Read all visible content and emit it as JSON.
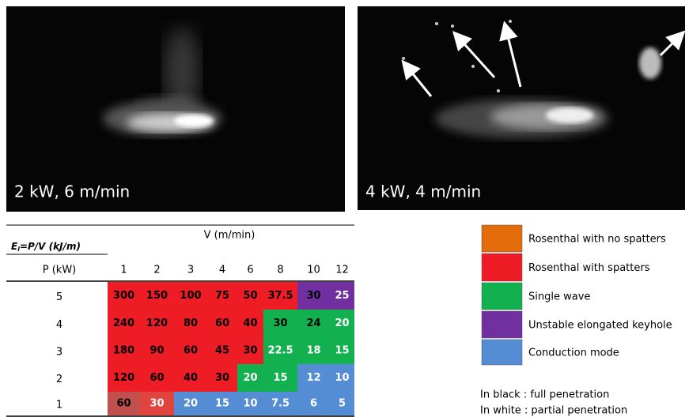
{
  "photos": [
    {
      "caption": "2 kW, 6 m/min"
    },
    {
      "caption": "4 kW, 4 m/min"
    }
  ],
  "table": {
    "corner": {
      "main": "E",
      "sub": "l",
      "rest": "=P/V (kJ/m)"
    },
    "column_title": "V (m/min)",
    "row_title": "P (kW)",
    "speeds": [
      "1",
      "2",
      "3",
      "4",
      "6",
      "8",
      "10",
      "12"
    ],
    "rows": [
      {
        "power": "5",
        "cells": [
          {
            "text": "300",
            "color": "#ee1c25",
            "ink": "#000000"
          },
          {
            "text": "150",
            "color": "#ee1c25",
            "ink": "#000000"
          },
          {
            "text": "100",
            "color": "#ee1c25",
            "ink": "#000000"
          },
          {
            "text": "75",
            "color": "#ee1c25",
            "ink": "#000000"
          },
          {
            "text": "50",
            "color": "#ee1c25",
            "ink": "#000000"
          },
          {
            "text": "37.5",
            "color": "#ee1c25",
            "ink": "#000000"
          },
          {
            "text": "30",
            "color": "#7030a0",
            "ink": "#000000"
          },
          {
            "text": "25",
            "color": "#7030a0",
            "ink": "#ffffff"
          }
        ]
      },
      {
        "power": "4",
        "cells": [
          {
            "text": "240",
            "color": "#ee1c25",
            "ink": "#000000"
          },
          {
            "text": "120",
            "color": "#ee1c25",
            "ink": "#000000"
          },
          {
            "text": "80",
            "color": "#ee1c25",
            "ink": "#000000"
          },
          {
            "text": "60",
            "color": "#ee1c25",
            "ink": "#000000"
          },
          {
            "text": "40",
            "color": "#ee1c25",
            "ink": "#000000"
          },
          {
            "text": "30",
            "color": "#12b04f",
            "ink": "#000000"
          },
          {
            "text": "24",
            "color": "#12b04f",
            "ink": "#000000"
          },
          {
            "text": "20",
            "color": "#12b04f",
            "ink": "#ffffff"
          }
        ]
      },
      {
        "power": "3",
        "cells": [
          {
            "text": "180",
            "color": "#ee1c25",
            "ink": "#000000"
          },
          {
            "text": "90",
            "color": "#ee1c25",
            "ink": "#000000"
          },
          {
            "text": "60",
            "color": "#ee1c25",
            "ink": "#000000"
          },
          {
            "text": "45",
            "color": "#ee1c25",
            "ink": "#000000"
          },
          {
            "text": "30",
            "color": "#ee1c25",
            "ink": "#000000"
          },
          {
            "text": "22.5",
            "color": "#12b04f",
            "ink": "#ffffff"
          },
          {
            "text": "18",
            "color": "#12b04f",
            "ink": "#ffffff"
          },
          {
            "text": "15",
            "color": "#12b04f",
            "ink": "#ffffff"
          }
        ]
      },
      {
        "power": "2",
        "cells": [
          {
            "text": "120",
            "color": "#ee1c25",
            "ink": "#000000"
          },
          {
            "text": "60",
            "color": "#ee1c25",
            "ink": "#000000"
          },
          {
            "text": "40",
            "color": "#ee1c25",
            "ink": "#000000"
          },
          {
            "text": "30",
            "color": "#ee1c25",
            "ink": "#000000"
          },
          {
            "text": "20",
            "color": "#12b04f",
            "ink": "#ffffff"
          },
          {
            "text": "15",
            "color": "#12b04f",
            "ink": "#ffffff"
          },
          {
            "text": "12",
            "color": "#548dd4",
            "ink": "#ffffff"
          },
          {
            "text": "10",
            "color": "#548dd4",
            "ink": "#ffffff"
          }
        ]
      },
      {
        "power": "1",
        "cells": [
          {
            "text": "60",
            "color": "#c0504d",
            "ink": "#000000"
          },
          {
            "text": "30",
            "color": "#e0443e",
            "ink": "#ffffff"
          },
          {
            "text": "20",
            "color": "#548dd4",
            "ink": "#ffffff"
          },
          {
            "text": "15",
            "color": "#548dd4",
            "ink": "#ffffff"
          },
          {
            "text": "10",
            "color": "#548dd4",
            "ink": "#ffffff"
          },
          {
            "text": "7.5",
            "color": "#548dd4",
            "ink": "#ffffff"
          },
          {
            "text": "6",
            "color": "#548dd4",
            "ink": "#ffffff"
          },
          {
            "text": "5",
            "color": "#548dd4",
            "ink": "#ffffff"
          }
        ]
      }
    ]
  },
  "legend": [
    {
      "label": "Rosenthal with no spatters",
      "color": "#e46c0a"
    },
    {
      "label": "Rosenthal with spatters",
      "color": "#ee1c25"
    },
    {
      "label": "Single wave",
      "color": "#12b04f"
    },
    {
      "label": "Unstable elongated keyhole",
      "color": "#7030a0"
    },
    {
      "label": "Conduction mode",
      "color": "#548dd4"
    }
  ],
  "notes": [
    "In black : full penetration",
    "In white : partial penetration"
  ]
}
